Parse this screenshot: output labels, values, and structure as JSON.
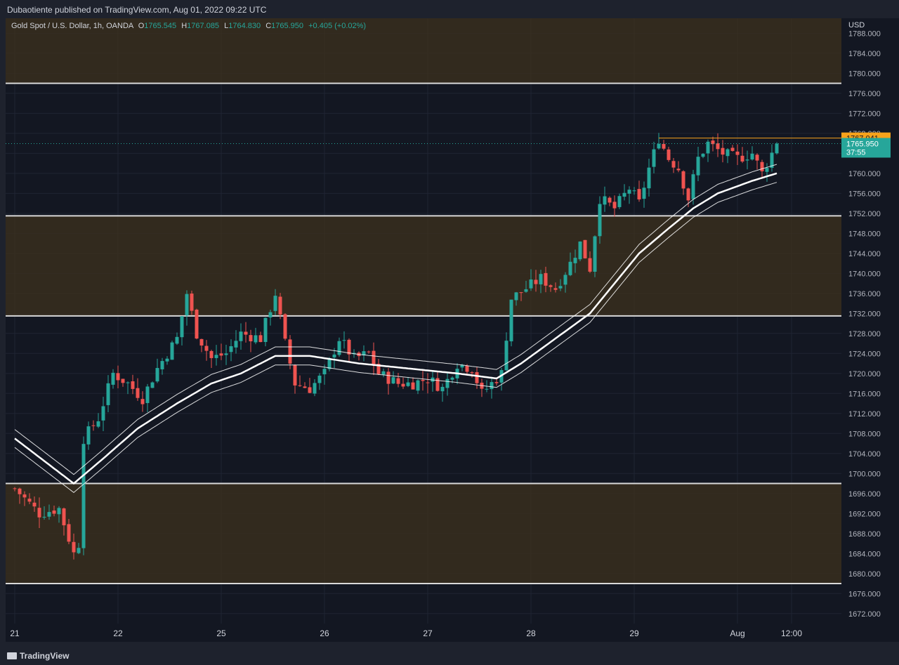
{
  "header": {
    "publish_line": "Dubaotiente published on TradingView.com, Aug 01, 2022 09:22 UTC"
  },
  "legend": {
    "symbol": "Gold Spot / U.S. Dollar, 1h, OANDA",
    "open_label": "O",
    "open": "1765.545",
    "high_label": "H",
    "high": "1767.085",
    "low_label": "L",
    "low": "1764.830",
    "close_label": "C",
    "close": "1765.950",
    "change": "+0.405 (+0.02%)"
  },
  "price_axis": {
    "unit": "USD"
  },
  "badges": {
    "alert_price": "1767.041",
    "last_price": "1765.950",
    "countdown": "37:55"
  },
  "footer": {
    "brand": "TradingView"
  },
  "colors": {
    "up": "#26a69a",
    "down": "#ef5350",
    "zone_fill": "#3b2f1e",
    "alert": "#f7a21b",
    "background": "#131722"
  },
  "chart_data": {
    "type": "candlestick",
    "title": "Gold Spot / U.S. Dollar, 1h, OANDA",
    "ylim": [
      1670,
      1791
    ],
    "y_ticks": [
      1788,
      1784,
      1780,
      1776,
      1772,
      1768,
      1764,
      1760,
      1756,
      1752,
      1748,
      1744,
      1740,
      1736,
      1732,
      1728,
      1724,
      1720,
      1716,
      1712,
      1708,
      1704,
      1700,
      1696,
      1692,
      1688,
      1684,
      1680,
      1676,
      1672
    ],
    "y_tick_labels": [
      "1788.000",
      "1784.000",
      "1780.000",
      "1776.000",
      "1772.000",
      "1768.000",
      "1764.000",
      "1760.000",
      "1756.000",
      "1752.000",
      "1748.000",
      "1744.000",
      "1740.000",
      "1736.000",
      "1732.000",
      "1728.000",
      "1724.000",
      "1720.000",
      "1716.000",
      "1712.000",
      "1708.000",
      "1704.000",
      "1700.000",
      "1696.000",
      "1692.000",
      "1688.000",
      "1684.000",
      "1680.000",
      "1676.000",
      "1672.000"
    ],
    "x_labels": [
      {
        "label": "21",
        "t": 0
      },
      {
        "label": "22",
        "t": 21
      },
      {
        "label": "25",
        "t": 42
      },
      {
        "label": "26",
        "t": 63
      },
      {
        "label": "27",
        "t": 84
      },
      {
        "label": "28",
        "t": 105
      },
      {
        "label": "29",
        "t": 126
      },
      {
        "label": "Aug",
        "t": 147
      },
      {
        "label": "12:00",
        "t": 158
      }
    ],
    "zones": [
      {
        "low": 1778,
        "high": 1791
      },
      {
        "low": 1731.5,
        "high": 1751.5
      },
      {
        "low": 1678,
        "high": 1698
      }
    ],
    "horizontal_lines": [
      1778,
      1751.5,
      1731.5,
      1698,
      1678
    ],
    "alert_line": 1767.041,
    "last_price": 1765.95,
    "key_points": [
      {
        "t": 0,
        "p": 1697
      },
      {
        "t": 5,
        "p": 1692
      },
      {
        "t": 9,
        "p": 1693
      },
      {
        "t": 11,
        "p": 1687
      },
      {
        "t": 12,
        "p": 1684
      },
      {
        "t": 13,
        "p": 1686
      },
      {
        "t": 14,
        "p": 1707
      },
      {
        "t": 17,
        "p": 1711
      },
      {
        "t": 20,
        "p": 1720
      },
      {
        "t": 23,
        "p": 1718
      },
      {
        "t": 26,
        "p": 1715
      },
      {
        "t": 29,
        "p": 1721
      },
      {
        "t": 33,
        "p": 1727
      },
      {
        "t": 35,
        "p": 1736
      },
      {
        "t": 37,
        "p": 1728
      },
      {
        "t": 40,
        "p": 1723
      },
      {
        "t": 43,
        "p": 1724
      },
      {
        "t": 46,
        "p": 1728
      },
      {
        "t": 50,
        "p": 1727
      },
      {
        "t": 53,
        "p": 1736
      },
      {
        "t": 55,
        "p": 1726
      },
      {
        "t": 57,
        "p": 1718
      },
      {
        "t": 60,
        "p": 1717
      },
      {
        "t": 63,
        "p": 1720
      },
      {
        "t": 66,
        "p": 1727
      },
      {
        "t": 69,
        "p": 1723
      },
      {
        "t": 72,
        "p": 1724
      },
      {
        "t": 74,
        "p": 1720
      },
      {
        "t": 78,
        "p": 1718
      },
      {
        "t": 81,
        "p": 1718
      },
      {
        "t": 84,
        "p": 1719
      },
      {
        "t": 87,
        "p": 1717
      },
      {
        "t": 90,
        "p": 1722
      },
      {
        "t": 93,
        "p": 1721
      },
      {
        "t": 95,
        "p": 1716
      },
      {
        "t": 97,
        "p": 1718
      },
      {
        "t": 99,
        "p": 1720
      },
      {
        "t": 101,
        "p": 1735
      },
      {
        "t": 104,
        "p": 1737
      },
      {
        "t": 107,
        "p": 1739
      },
      {
        "t": 110,
        "p": 1737
      },
      {
        "t": 113,
        "p": 1742
      },
      {
        "t": 115,
        "p": 1746
      },
      {
        "t": 117,
        "p": 1741
      },
      {
        "t": 119,
        "p": 1755
      },
      {
        "t": 122,
        "p": 1753
      },
      {
        "t": 125,
        "p": 1757
      },
      {
        "t": 127,
        "p": 1754
      },
      {
        "t": 129,
        "p": 1761
      },
      {
        "t": 131,
        "p": 1767
      },
      {
        "t": 133,
        "p": 1763
      },
      {
        "t": 135,
        "p": 1761
      },
      {
        "t": 137,
        "p": 1755
      },
      {
        "t": 139,
        "p": 1763
      },
      {
        "t": 141,
        "p": 1766
      },
      {
        "t": 144,
        "p": 1764
      },
      {
        "t": 147,
        "p": 1763
      },
      {
        "t": 150,
        "p": 1764
      },
      {
        "t": 152,
        "p": 1760
      },
      {
        "t": 154,
        "p": 1764
      },
      {
        "t": 155,
        "p": 1765.95
      }
    ],
    "moving_averages": [
      {
        "name": "",
        "role": "middle",
        "points": [
          {
            "t": 0,
            "p": 1707
          },
          {
            "t": 12,
            "p": 1698
          },
          {
            "t": 18,
            "p": 1703
          },
          {
            "t": 25,
            "p": 1709
          },
          {
            "t": 33,
            "p": 1714
          },
          {
            "t": 40,
            "p": 1718
          },
          {
            "t": 46,
            "p": 1720
          },
          {
            "t": 53,
            "p": 1723.5
          },
          {
            "t": 60,
            "p": 1723.5
          },
          {
            "t": 70,
            "p": 1722
          },
          {
            "t": 80,
            "p": 1721
          },
          {
            "t": 90,
            "p": 1720
          },
          {
            "t": 98,
            "p": 1719
          },
          {
            "t": 103,
            "p": 1722
          },
          {
            "t": 110,
            "p": 1727
          },
          {
            "t": 117,
            "p": 1732
          },
          {
            "t": 122,
            "p": 1738
          },
          {
            "t": 127,
            "p": 1744
          },
          {
            "t": 133,
            "p": 1749
          },
          {
            "t": 138,
            "p": 1753
          },
          {
            "t": 143,
            "p": 1756
          },
          {
            "t": 150,
            "p": 1758.5
          },
          {
            "t": 155,
            "p": 1760
          }
        ]
      },
      {
        "name": "",
        "role": "upper",
        "offset": 1.8
      },
      {
        "name": "",
        "role": "lower",
        "offset": -1.8
      }
    ]
  }
}
